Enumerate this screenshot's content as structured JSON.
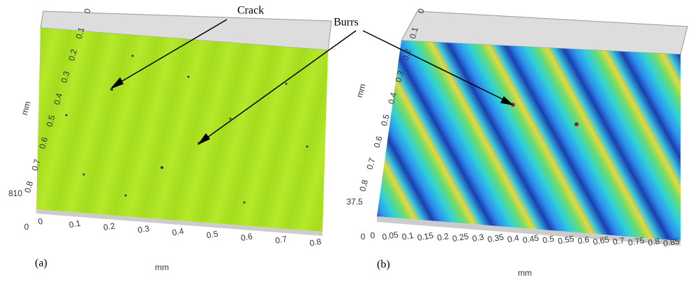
{
  "annotations": {
    "crack": "Crack",
    "burrs": "Burrs"
  },
  "panels": [
    {
      "label": "(a)",
      "y_axis_label": "mm",
      "x_axis_label": "mm",
      "y_ticks": [
        "0",
        "0.1",
        "0.2",
        "0.3",
        "0.4",
        "0.5",
        "0.6",
        "0.7",
        "0.8"
      ],
      "z_ticks": [
        "810",
        "0"
      ],
      "x_ticks": [
        "0",
        "0.1",
        "0.2",
        "0.3",
        "0.4",
        "0.5",
        "0.6",
        "0.7",
        "0.8"
      ]
    },
    {
      "label": "(b)",
      "y_axis_label": "mm",
      "x_axis_label": "mm",
      "y_ticks": [
        "0",
        "0.1",
        "0.2",
        "0.3",
        "0.4",
        "0.5",
        "0.6",
        "0.7",
        "0.8"
      ],
      "z_ticks": [
        "37.5",
        "0"
      ],
      "x_ticks": [
        "0",
        "0.05",
        "0.1",
        "0.15",
        "0.2",
        "0.25",
        "0.3",
        "0.35",
        "0.4",
        "0.45",
        "0.5",
        "0.55",
        "0.6",
        "0.65",
        "0.7",
        "0.75",
        "0.8",
        "0.85"
      ]
    }
  ]
}
